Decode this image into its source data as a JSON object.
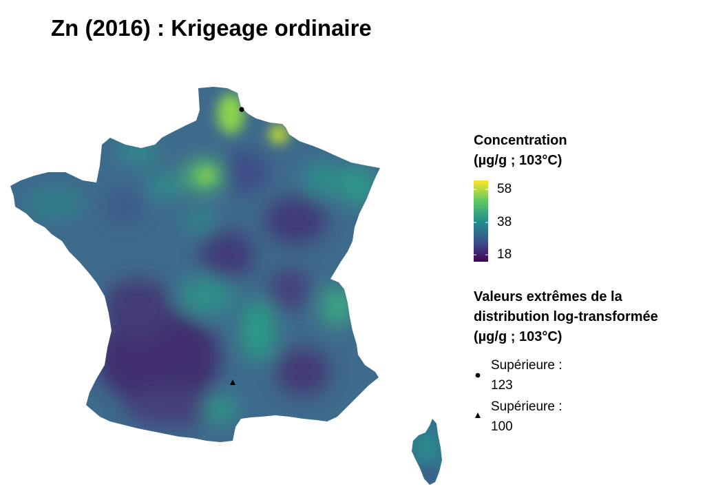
{
  "title": "Zn (2016) : Krigeage ordinaire",
  "legend_concentration": {
    "title_line1": "Concentration",
    "title_line2": "(µg/g ; 103°C)",
    "ticks": [
      "58",
      "38",
      "18"
    ],
    "colors": [
      "#440154",
      "#3b528b",
      "#21908c",
      "#5dc963",
      "#fde725"
    ]
  },
  "legend_extremes": {
    "title_line1": "Valeurs extrêmes de la",
    "title_line2": "distribution log-transformée",
    "title_line3": "(µg/g ; 103°C)",
    "items": [
      {
        "symbol": "circle",
        "label_line1": "Supérieure :",
        "label_line2": "123"
      },
      {
        "symbol": "triangle",
        "label_line1": "Supérieure :",
        "label_line2": "100"
      }
    ]
  }
}
